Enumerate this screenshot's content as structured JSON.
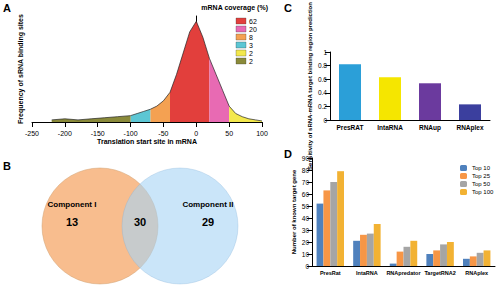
{
  "chart_data": [
    {
      "panel": "A",
      "type": "area",
      "x_label": "Translation start site in mRNA",
      "y_label": "Frequency of sRNA binding sites",
      "legend_title": "mRNA coverage (%)",
      "legend": "upper right",
      "xlim": [
        -250,
        100
      ],
      "xticks": [
        -250,
        -200,
        -150,
        -100,
        -50,
        0,
        50,
        100
      ],
      "ylim": [
        0,
        100
      ],
      "tick_labels": "x",
      "grid": false,
      "series": [
        {
          "name": "62",
          "color": "#e23f3c",
          "x": [
            -40,
            -30,
            -20,
            -10,
            0,
            10,
            20
          ],
          "values": [
            28,
            45,
            65,
            85,
            95,
            80,
            60
          ]
        },
        {
          "name": "20",
          "color": "#e86ab3",
          "x": [
            20,
            30,
            40,
            50
          ],
          "values": [
            60,
            45,
            30,
            15
          ]
        },
        {
          "name": "8",
          "color": "#f4a152",
          "x": [
            -70,
            -60,
            -50,
            -40
          ],
          "values": [
            12,
            15,
            20,
            28
          ]
        },
        {
          "name": "3",
          "color": "#5cc6d4",
          "x": [
            -100,
            -90,
            -80,
            -70
          ],
          "values": [
            6,
            8,
            10,
            12
          ]
        },
        {
          "name": "2",
          "color": "#f3e84c",
          "x": [
            50,
            60,
            70,
            80,
            90,
            100
          ],
          "values": [
            15,
            8,
            5,
            3,
            2,
            1
          ]
        },
        {
          "name": "2",
          "color": "#8a8a3a",
          "x": [
            -220,
            -200,
            -180,
            -160,
            -140,
            -120,
            -100
          ],
          "values": [
            2,
            3,
            2,
            3,
            4,
            5,
            6
          ]
        }
      ]
    },
    {
      "panel": "B",
      "type": "venn",
      "sets": [
        {
          "name": "Component I",
          "value": 13,
          "color": "#f8bd8e"
        },
        {
          "name": "Component II",
          "value": 29,
          "color": "#a6d3f5"
        }
      ],
      "overlap": 30
    },
    {
      "panel": "C",
      "type": "bar",
      "y_label": "Sensitivity of sRNA-mRNA target binding region prediction",
      "categories": [
        "PresRAT",
        "IntaRNA",
        "RNAup",
        "RNAplex"
      ],
      "values": [
        0.82,
        0.63,
        0.54,
        0.23
      ],
      "colors": [
        "#2b9fd8",
        "#f5e600",
        "#6b3a9e",
        "#3b3f9e"
      ],
      "ylim": [
        0,
        1
      ],
      "yticks": [
        0,
        0.2,
        0.4,
        0.6,
        0.8,
        1
      ],
      "grid": false
    },
    {
      "panel": "D",
      "type": "bar",
      "y_label": "Number of known target gene",
      "categories": [
        "PresRat",
        "IntaRNA",
        "RNApredator",
        "TargetRNA2",
        "RNAplex"
      ],
      "series": [
        {
          "name": "Top 10",
          "color": "#4f81bd",
          "values": [
            52,
            21,
            2,
            10,
            6
          ]
        },
        {
          "name": "Top 25",
          "color": "#f79646",
          "values": [
            63,
            26,
            12,
            13,
            8
          ]
        },
        {
          "name": "Top 50",
          "color": "#a5a5a5",
          "values": [
            70,
            27,
            16,
            18,
            11
          ]
        },
        {
          "name": "Top 100",
          "color": "#f2b233",
          "values": [
            79,
            35,
            21,
            20,
            13
          ]
        }
      ],
      "ylim": [
        0,
        90
      ],
      "yticks": [
        0,
        10,
        20,
        30,
        40,
        50,
        60,
        70,
        80,
        90
      ],
      "legend": "upper right",
      "grid": false
    }
  ]
}
